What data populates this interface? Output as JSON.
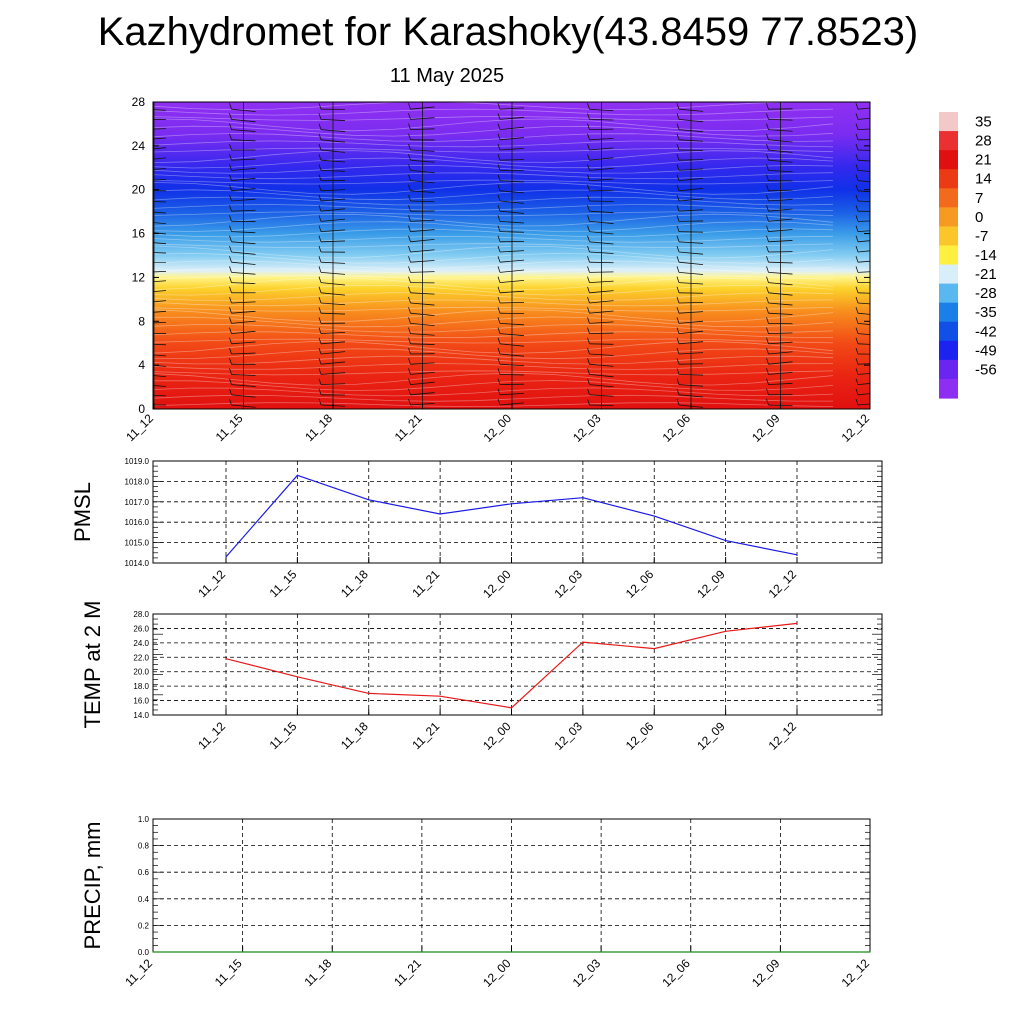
{
  "title": "Kazhydromet for Karashoky(43.8459 77.8523)",
  "subtitle": "11 May 2025",
  "chart_data": [
    {
      "type": "heatmap",
      "x_tick_labels": [
        "11_12",
        "11_15",
        "11_18",
        "11_21",
        "12_00",
        "12_03",
        "12_06",
        "12_09",
        "12_12"
      ],
      "y_ticks": [
        0,
        4,
        8,
        12,
        16,
        20,
        24,
        28
      ],
      "ylim": [
        0,
        28
      ],
      "colorbar_labels": [
        "35",
        "28",
        "21",
        "14",
        "7",
        "0",
        "-7",
        "-14",
        "-21",
        "-28",
        "-35",
        "-42",
        "-49",
        "-56"
      ],
      "colorbar_colors": [
        "#f2c8c8",
        "#ea3030",
        "#e01010",
        "#ec3a14",
        "#f26a1c",
        "#f79a22",
        "#fbc62a",
        "#fff040",
        "#d8eef8",
        "#5ab8f0",
        "#1a80e8",
        "#1050e6",
        "#1c22f0",
        "#6a26f0",
        "#8e2ef2"
      ],
      "layer_colors": [
        {
          "level": 0,
          "color": "#e01010"
        },
        {
          "level": 3,
          "color": "#ea2412"
        },
        {
          "level": 6,
          "color": "#f24a16"
        },
        {
          "level": 9,
          "color": "#f8901e"
        },
        {
          "level": 11,
          "color": "#fcd22c"
        },
        {
          "level": 12,
          "color": "#fff48a"
        },
        {
          "level": 12.6,
          "color": "#dff0f8"
        },
        {
          "level": 14,
          "color": "#84cdf2"
        },
        {
          "level": 16,
          "color": "#3a9ce8"
        },
        {
          "level": 18,
          "color": "#1a5ee6"
        },
        {
          "level": 20,
          "color": "#1030e8"
        },
        {
          "level": 22,
          "color": "#3228ee"
        },
        {
          "level": 25,
          "color": "#7a2cf0"
        },
        {
          "level": 28,
          "color": "#9030f2"
        }
      ]
    },
    {
      "type": "line",
      "ylabel": "PMSL",
      "ylim": [
        1014.0,
        1019.0
      ],
      "y_ticks": [
        "1014.0",
        "1015.0",
        "1016.0",
        "1017.0",
        "1018.0",
        "1019.0"
      ],
      "x": [
        "11_12",
        "11_15",
        "11_18",
        "11_21",
        "12_00",
        "12_03",
        "12_06",
        "12_09",
        "12_12"
      ],
      "series": [
        {
          "values": [
            1014.3,
            1018.3,
            1017.1,
            1016.4,
            1016.9,
            1017.2,
            1016.3,
            1015.1,
            1014.4
          ],
          "color": "#1a1ae6"
        }
      ]
    },
    {
      "type": "line",
      "ylabel": "TEMP at 2 M",
      "ylim": [
        14.0,
        28.0
      ],
      "y_ticks": [
        "14.0",
        "16.0",
        "18.0",
        "20.0",
        "22.0",
        "24.0",
        "26.0",
        "28.0"
      ],
      "x": [
        "11_12",
        "11_15",
        "11_18",
        "11_21",
        "12_00",
        "12_03",
        "12_06",
        "12_09",
        "12_12"
      ],
      "series": [
        {
          "values": [
            21.8,
            19.3,
            17.0,
            16.6,
            15.0,
            24.1,
            23.2,
            25.6,
            26.7
          ],
          "color": "#e61a1a"
        }
      ]
    },
    {
      "type": "line",
      "ylabel": "PRECIP, mm",
      "ylim": [
        0.0,
        1.0
      ],
      "y_ticks": [
        "0.0",
        "0.2",
        "0.4",
        "0.6",
        "0.8",
        "1.0"
      ],
      "x": [
        "11_12",
        "11_15",
        "11_18",
        "11_21",
        "12_00",
        "12_03",
        "12_06",
        "12_09",
        "12_12"
      ],
      "series": [
        {
          "values": [
            0,
            0,
            0,
            0,
            0,
            0,
            0,
            0,
            0
          ],
          "color": "#1a8a1a"
        }
      ]
    }
  ]
}
